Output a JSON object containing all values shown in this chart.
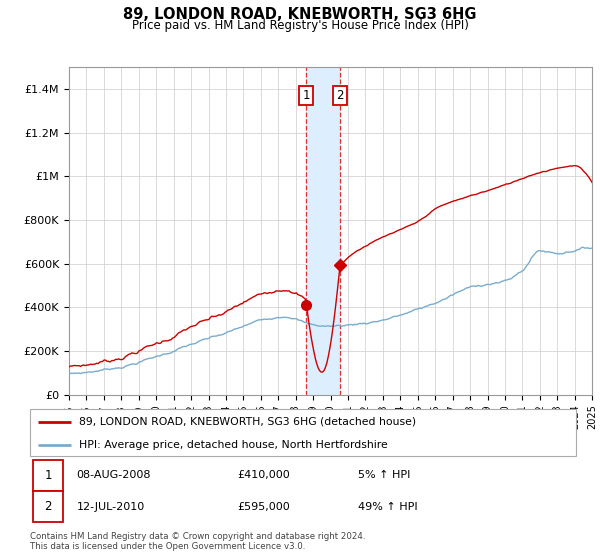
{
  "title": "89, LONDON ROAD, KNEBWORTH, SG3 6HG",
  "subtitle": "Price paid vs. HM Land Registry's House Price Index (HPI)",
  "legend_line1": "89, LONDON ROAD, KNEBWORTH, SG3 6HG (detached house)",
  "legend_line2": "HPI: Average price, detached house, North Hertfordshire",
  "annotation1_date": "08-AUG-2008",
  "annotation1_price": "£410,000",
  "annotation1_hpi": "5% ↑ HPI",
  "annotation2_date": "12-JUL-2010",
  "annotation2_price": "£595,000",
  "annotation2_hpi": "49% ↑ HPI",
  "footer": "Contains HM Land Registry data © Crown copyright and database right 2024.\nThis data is licensed under the Open Government Licence v3.0.",
  "line_color_red": "#cc0000",
  "line_color_blue": "#7aaccc",
  "highlight_color": "#ddeeff",
  "vline_color": "#dd3333",
  "ylabel_ticks": [
    "£0",
    "£200K",
    "£400K",
    "£600K",
    "£800K",
    "£1M",
    "£1.2M",
    "£1.4M"
  ],
  "ytick_values": [
    0,
    200000,
    400000,
    600000,
    800000,
    1000000,
    1200000,
    1400000
  ],
  "ylim": [
    0,
    1500000
  ],
  "sale1_year": 2008.6,
  "sale2_year": 2010.54,
  "sale1_price": 410000,
  "sale2_price": 595000
}
